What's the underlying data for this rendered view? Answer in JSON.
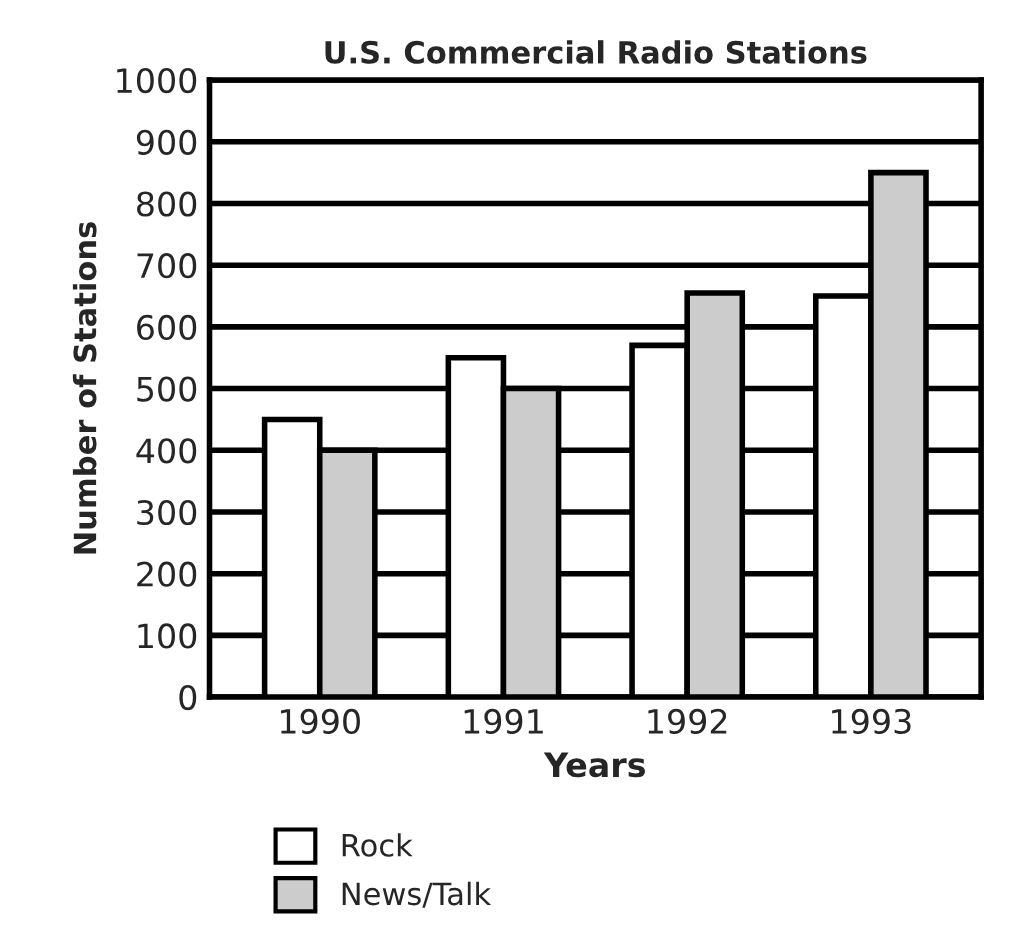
{
  "chart_data": {
    "type": "bar",
    "title": "U.S. Commercial Radio Stations",
    "xlabel": "Years",
    "ylabel": "Number of Stations",
    "categories": [
      "1990",
      "1991",
      "1992",
      "1993"
    ],
    "series": [
      {
        "name": "Rock",
        "color": "#ffffff",
        "values": [
          450,
          550,
          570,
          650
        ]
      },
      {
        "name": "News/Talk",
        "color": "#cccccc",
        "values": [
          400,
          500,
          655,
          850
        ]
      }
    ],
    "ylim": [
      0,
      1000
    ],
    "yticks": [
      0,
      100,
      200,
      300,
      400,
      500,
      600,
      700,
      800,
      900,
      1000
    ],
    "grid": "y",
    "legend": "bottom"
  }
}
